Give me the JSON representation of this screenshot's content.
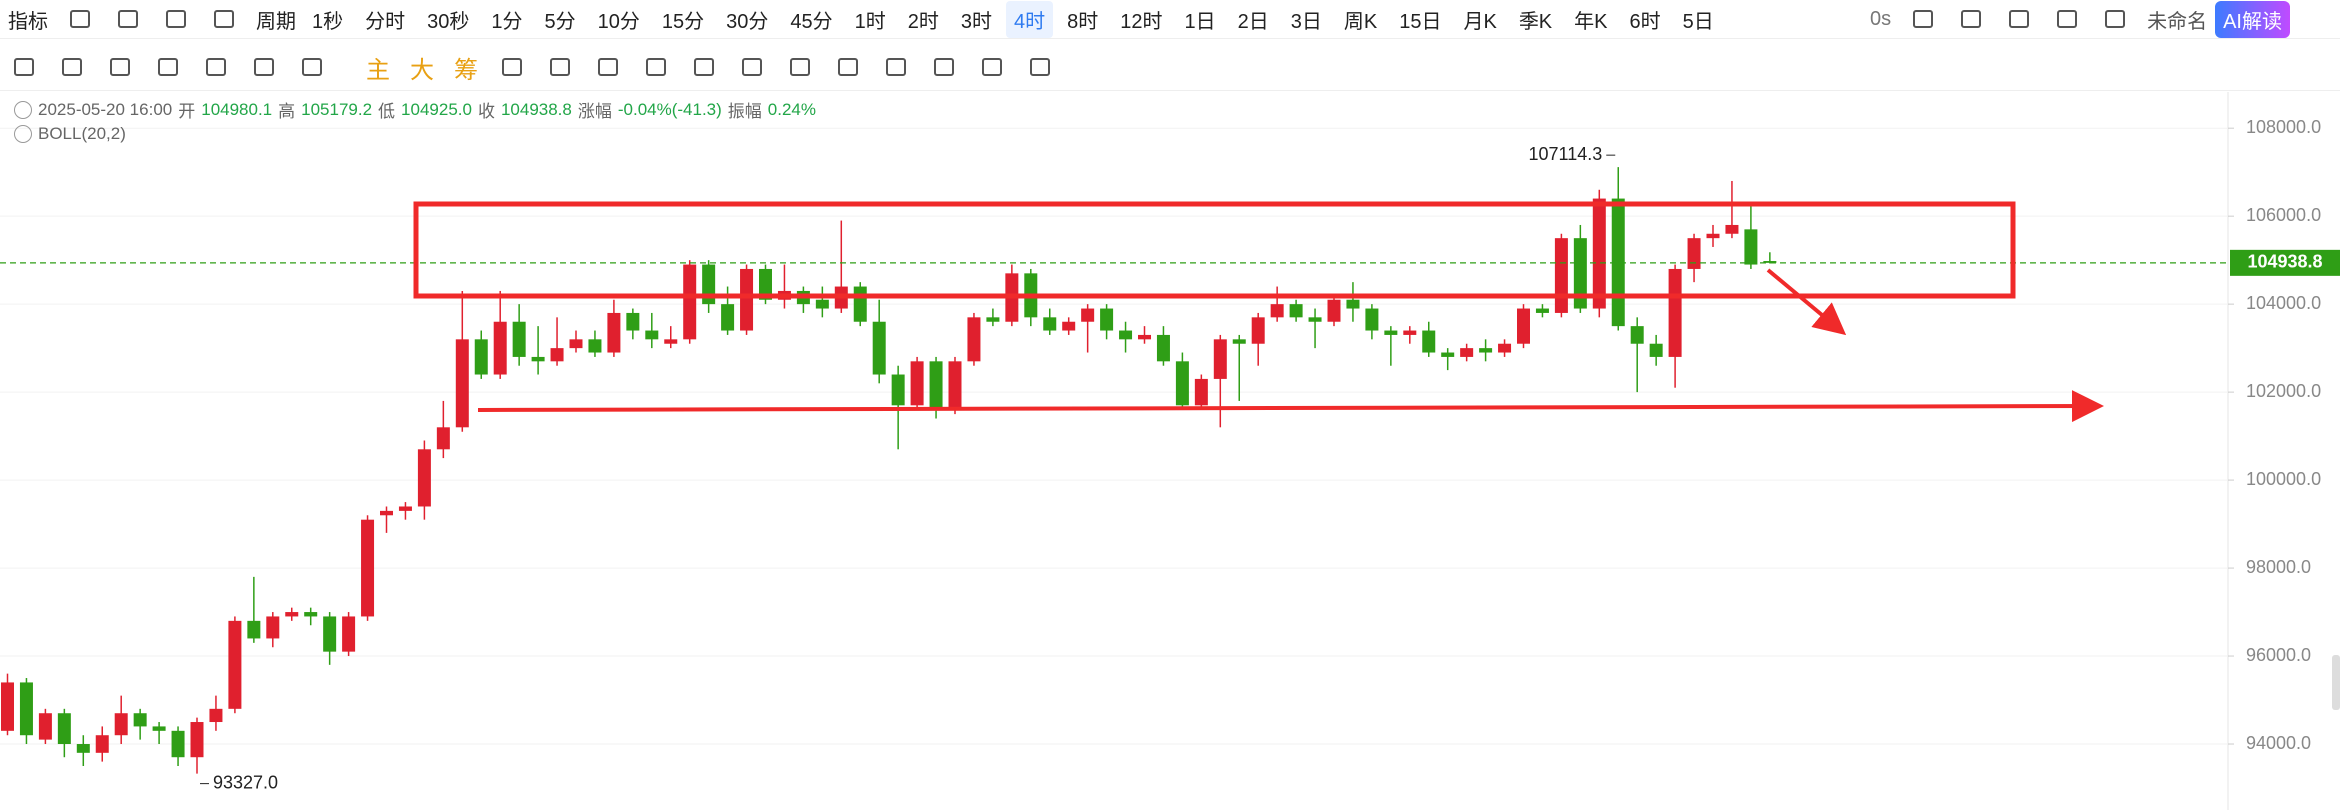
{
  "toolbar": {
    "indicator": "指标",
    "period": "周期",
    "intervals": [
      "1秒",
      "分时",
      "30秒",
      "1分",
      "5分",
      "10分",
      "15分",
      "30分",
      "45分",
      "1时",
      "2时",
      "3时",
      "4时",
      "8时",
      "12时",
      "1日",
      "2日",
      "3日",
      "周K",
      "15日",
      "月K",
      "季K",
      "年K",
      "6时",
      "5日"
    ],
    "active_interval": "4时",
    "countdown": "0s",
    "layout_name": "未命名",
    "ai_button": "AI解读"
  },
  "drawbar": {
    "modes": [
      "主",
      "大",
      "筹"
    ]
  },
  "info": {
    "time": "2025-05-20 16:00",
    "fields": [
      {
        "label": "开",
        "value": "104980.1"
      },
      {
        "label": "高",
        "value": "105179.2"
      },
      {
        "label": "低",
        "value": "104925.0"
      },
      {
        "label": "收",
        "value": "104938.8"
      },
      {
        "label": "涨幅",
        "value": "-0.04%(-41.3)"
      },
      {
        "label": "振幅",
        "value": "0.24%"
      }
    ],
    "indicator": "BOLL(20,2)"
  },
  "chart_data": {
    "type": "candlestick",
    "open": [
      94300,
      95400,
      94100,
      94700,
      94000,
      93800,
      94200,
      94700,
      94400,
      94300,
      93700,
      94500,
      94800,
      96800,
      96400,
      96900,
      97000,
      96900,
      96100,
      96900,
      99200,
      99300,
      99400,
      100700,
      101200,
      103200,
      102400,
      103600,
      102800,
      102700,
      103000,
      103200,
      102900,
      103800,
      103400,
      103100,
      103200,
      104900,
      104000,
      103400,
      104800,
      104100,
      104300,
      104100,
      103900,
      104400,
      103600,
      102400,
      101700,
      102700,
      101600,
      102700,
      103700,
      103600,
      104700,
      103700,
      103400,
      103600,
      103900,
      103400,
      103200,
      103300,
      102700,
      101700,
      102300,
      103200,
      103100,
      103700,
      104000,
      103700,
      103600,
      104100,
      103900,
      103400,
      103300,
      103400,
      102900,
      102800,
      103000,
      102900,
      103100,
      103900,
      103800,
      105500,
      103900,
      106400,
      103500,
      103100,
      102800,
      104800,
      105500,
      105600,
      105700,
      104980.1
    ],
    "high": [
      95600,
      95500,
      94800,
      94800,
      94200,
      94400,
      95100,
      94800,
      94500,
      94400,
      94600,
      95100,
      96900,
      97800,
      97000,
      97100,
      97100,
      97000,
      97000,
      99200,
      99400,
      99500,
      100900,
      101800,
      104300,
      103400,
      104300,
      104000,
      103500,
      103700,
      103400,
      103400,
      104100,
      103900,
      103800,
      103500,
      105000,
      105000,
      104400,
      104900,
      104900,
      104900,
      104400,
      104400,
      105900,
      104500,
      104100,
      102600,
      102800,
      102800,
      102800,
      103800,
      103900,
      104900,
      104800,
      103900,
      103700,
      104000,
      104000,
      103600,
      103500,
      103500,
      102900,
      102400,
      103300,
      103300,
      103800,
      104400,
      104100,
      103900,
      104200,
      104500,
      104000,
      103500,
      103500,
      103600,
      103000,
      103100,
      103200,
      103200,
      104000,
      104000,
      105600,
      105800,
      106600,
      107114.3,
      103700,
      103300,
      104900,
      105600,
      105800,
      106800,
      106300,
      105179.2
    ],
    "low": [
      94200,
      94000,
      94000,
      93700,
      93500,
      93600,
      94000,
      94100,
      94000,
      93500,
      93327,
      94300,
      94700,
      96300,
      96200,
      96800,
      96700,
      95800,
      96000,
      96800,
      98800,
      99100,
      99100,
      100500,
      101100,
      102300,
      102300,
      102600,
      102400,
      102600,
      102900,
      102800,
      102800,
      103200,
      103000,
      103000,
      103100,
      103800,
      103300,
      103300,
      104000,
      103900,
      103800,
      103700,
      103800,
      103500,
      102200,
      100700,
      101600,
      101400,
      101500,
      102600,
      103500,
      103500,
      103500,
      103300,
      103300,
      102900,
      103200,
      102900,
      103100,
      102600,
      101600,
      101600,
      101200,
      101800,
      102600,
      103600,
      103600,
      103000,
      103500,
      103600,
      103200,
      102600,
      103100,
      102800,
      102500,
      102700,
      102700,
      102800,
      103000,
      103700,
      103700,
      103800,
      103700,
      103400,
      102000,
      102600,
      102100,
      104500,
      105300,
      105500,
      104800,
      104925.0
    ],
    "close": [
      95400,
      94200,
      94700,
      94000,
      93800,
      94200,
      94700,
      94400,
      94300,
      93700,
      94500,
      94800,
      96800,
      96400,
      96900,
      97000,
      96900,
      96100,
      96900,
      99100,
      99300,
      99400,
      100700,
      101200,
      103200,
      102400,
      103600,
      102800,
      102700,
      103000,
      103200,
      102900,
      103800,
      103400,
      103200,
      103200,
      104900,
      104000,
      103400,
      104800,
      104100,
      104300,
      104000,
      103900,
      104400,
      103600,
      102400,
      101700,
      102700,
      101600,
      102700,
      103700,
      103600,
      104700,
      103700,
      103400,
      103600,
      103900,
      103400,
      103200,
      103300,
      102700,
      101700,
      102300,
      103200,
      103100,
      103700,
      104000,
      103700,
      103600,
      104100,
      103900,
      103400,
      103300,
      103400,
      102900,
      102800,
      103000,
      102900,
      103100,
      103900,
      103800,
      105500,
      103900,
      106400,
      103500,
      103100,
      102800,
      104800,
      105500,
      105600,
      105800,
      104900,
      104938.8
    ],
    "up_color": "#e0202e",
    "down_color": "#2f9e16",
    "ylim": [
      92500,
      108800
    ],
    "yticks": [
      {
        "value": 94000,
        "label": "94000.0"
      },
      {
        "value": 96000,
        "label": "96000.0"
      },
      {
        "value": 98000,
        "label": "98000.0"
      },
      {
        "value": 100000,
        "label": "100000.0"
      },
      {
        "value": 102000,
        "label": "102000.0"
      },
      {
        "value": 104000,
        "label": "104000.0"
      },
      {
        "value": 106000,
        "label": "106000.0"
      },
      {
        "value": 108000,
        "label": "108000.0"
      }
    ],
    "grid": true,
    "last_price": 104938.8,
    "max_label": {
      "value": 107114.3,
      "label": "107114.3"
    },
    "min_label": {
      "value": 93327,
      "label": "93327.0"
    }
  }
}
